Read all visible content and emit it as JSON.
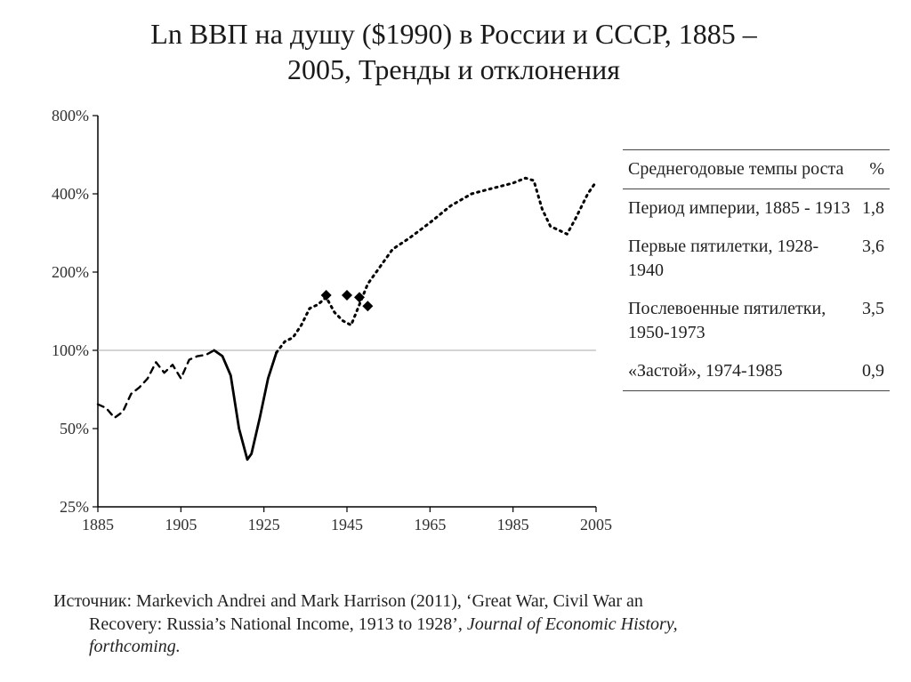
{
  "title": {
    "line1": "Ln ВВП на душу ($1990) в России и СССР, 1885 –",
    "line2": "2005, Тренды и отклонения",
    "fontsize": 32,
    "color": "#1a1a1a"
  },
  "chart": {
    "type": "line",
    "background_color": "#ffffff",
    "axis_color": "#000000",
    "tick_fontsize": 18,
    "tick_color": "#303030",
    "x": {
      "min": 1885,
      "max": 2005,
      "ticks": [
        1885,
        1905,
        1925,
        1945,
        1965,
        1985,
        2005
      ]
    },
    "y": {
      "scale": "log",
      "min": 25,
      "max": 800,
      "ticks": [
        25,
        50,
        100,
        200,
        400,
        800
      ],
      "tick_labels": [
        "25%",
        "50%",
        "100%",
        "200%",
        "400%",
        "800%"
      ]
    },
    "gridline_at": 100,
    "gridline_color": "#aaaaaa",
    "series": {
      "imperial": {
        "style": "dashed",
        "dash": "7 6",
        "width": 2.4,
        "color": "#000000",
        "points": [
          [
            1885,
            62
          ],
          [
            1887,
            60
          ],
          [
            1889,
            55
          ],
          [
            1891,
            58
          ],
          [
            1893,
            68
          ],
          [
            1895,
            72
          ],
          [
            1897,
            78
          ],
          [
            1899,
            90
          ],
          [
            1901,
            82
          ],
          [
            1903,
            88
          ],
          [
            1905,
            78
          ],
          [
            1907,
            92
          ],
          [
            1909,
            95
          ],
          [
            1911,
            96
          ],
          [
            1913,
            100
          ]
        ]
      },
      "war_recovery": {
        "style": "solid",
        "width": 2.8,
        "color": "#000000",
        "points": [
          [
            1913,
            100
          ],
          [
            1915,
            95
          ],
          [
            1917,
            80
          ],
          [
            1919,
            50
          ],
          [
            1921,
            38
          ],
          [
            1922,
            40
          ],
          [
            1924,
            55
          ],
          [
            1926,
            78
          ],
          [
            1928,
            98
          ]
        ]
      },
      "soviet": {
        "style": "dotted",
        "dash": "2 5",
        "width": 3.0,
        "color": "#000000",
        "points": [
          [
            1928,
            98
          ],
          [
            1930,
            108
          ],
          [
            1932,
            112
          ],
          [
            1934,
            125
          ],
          [
            1936,
            145
          ],
          [
            1938,
            150
          ],
          [
            1940,
            160
          ],
          [
            1942,
            140
          ],
          [
            1944,
            130
          ],
          [
            1946,
            125
          ],
          [
            1948,
            150
          ],
          [
            1950,
            180
          ],
          [
            1953,
            210
          ],
          [
            1956,
            245
          ],
          [
            1960,
            270
          ],
          [
            1965,
            310
          ],
          [
            1970,
            360
          ],
          [
            1975,
            400
          ],
          [
            1980,
            420
          ],
          [
            1985,
            440
          ],
          [
            1988,
            460
          ],
          [
            1990,
            450
          ],
          [
            1992,
            350
          ],
          [
            1994,
            300
          ],
          [
            1996,
            290
          ],
          [
            1998,
            280
          ],
          [
            2000,
            320
          ],
          [
            2003,
            400
          ],
          [
            2005,
            445
          ]
        ]
      },
      "markers": {
        "style": "diamonds",
        "size": 6,
        "color": "#000000",
        "points": [
          [
            1940,
            163
          ],
          [
            1945,
            163
          ],
          [
            1948,
            160
          ],
          [
            1950,
            148
          ]
        ]
      }
    }
  },
  "table": {
    "header": {
      "label": "Среднегодовые темпы роста",
      "value": "%"
    },
    "rows": [
      {
        "label": "Период империи, 1885 - 1913",
        "value": "1,8"
      },
      {
        "label": "Первые пятилетки, 1928-1940",
        "value": "3,6"
      },
      {
        "label": "Послевоенные пятилетки, 1950-1973",
        "value": "3,5"
      },
      {
        "label": "«Застой», 1974-1985",
        "value": "0,9"
      }
    ],
    "fontsize": 20,
    "color": "#222222",
    "rule_color": "#444444"
  },
  "source": {
    "prefix": "Источник: ",
    "text1": "Markevich Andrei and Mark Harrison (2011), ‘Great  War, Civil War an",
    "text2": "Recovery: Russia’s National Income, 1913 to 1928’,",
    "italic": "Journal of Economic History,",
    "text3": "forthcoming.",
    "fontsize": 20
  }
}
